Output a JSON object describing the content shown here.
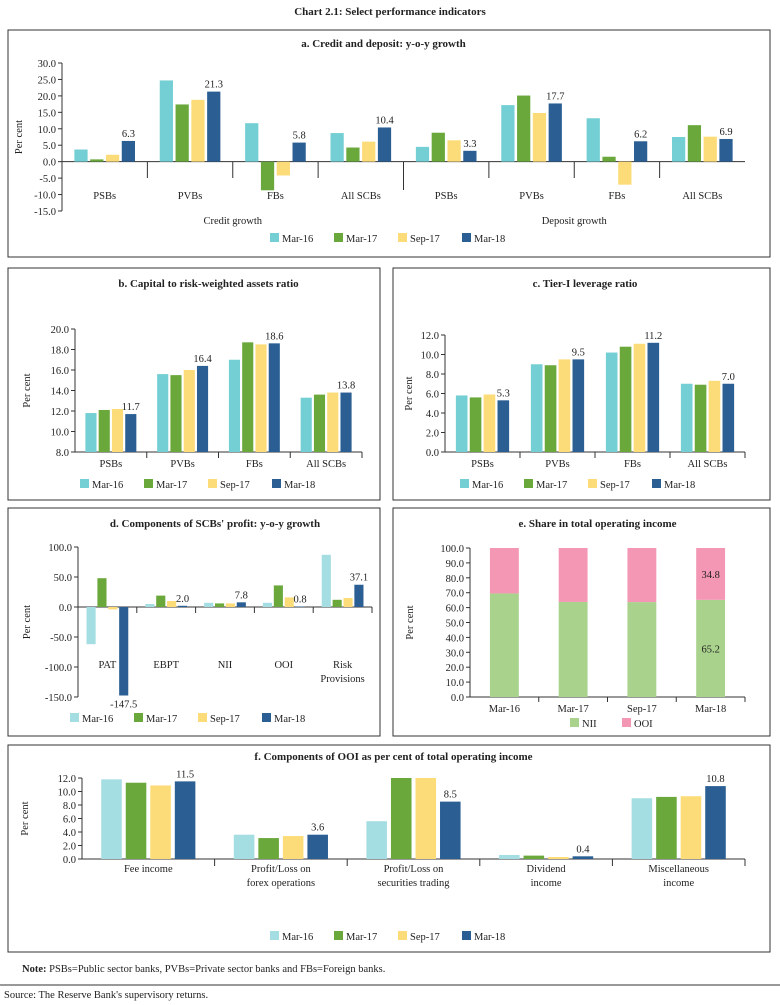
{
  "page_title": "Chart 2.1: Select performance indicators",
  "note_label": "Note:",
  "note_text": " PSBs=Public sector banks, PVBs=Private sector banks and FBs=Foreign banks.",
  "source": "Source: The Reserve Bank's supervisory returns.",
  "chart_data": {
    "a": {
      "type": "bar",
      "title": "a. Credit and deposit: y-o-y growth",
      "ylabel": "Per cent",
      "ylim": [
        -15,
        30
      ],
      "ystep": 5,
      "categories": [
        "PSBs",
        "PVBs",
        "FBs",
        "All SCBs",
        "PSBs",
        "PVBs",
        "FBs",
        "All SCBs"
      ],
      "groups": [
        {
          "label": "Credit growth",
          "span": 4
        },
        {
          "label": "Deposit growth",
          "span": 4
        }
      ],
      "series": [
        {
          "name": "Mar-16",
          "color": "#74cfd4",
          "values": [
            3.7,
            24.7,
            11.7,
            8.7,
            4.5,
            17.2,
            13.2,
            7.5
          ]
        },
        {
          "name": "Mar-17",
          "color": "#6aa83c",
          "values": [
            0.7,
            17.4,
            -8.7,
            4.3,
            8.8,
            20.1,
            1.5,
            11.1
          ]
        },
        {
          "name": "Sep-17",
          "color": "#fcdc78",
          "values": [
            2.1,
            18.8,
            -4.2,
            6.1,
            6.5,
            14.8,
            -7.0,
            7.6
          ]
        },
        {
          "name": "Mar-18",
          "color": "#2b5f93",
          "values": [
            6.3,
            21.3,
            5.8,
            10.4,
            3.3,
            17.7,
            6.2,
            6.9
          ],
          "labels": [
            "6.3",
            "21.3",
            "5.8",
            "10.4",
            "3.3",
            "17.7",
            "6.2",
            "6.9"
          ]
        }
      ]
    },
    "b": {
      "type": "bar",
      "title": "b. Capital to risk-weighted assets ratio",
      "ylabel": "Per cent",
      "ylim": [
        8,
        20
      ],
      "ystep": 2,
      "categories": [
        "PSBs",
        "PVBs",
        "FBs",
        "All SCBs"
      ],
      "series": [
        {
          "name": "Mar-16",
          "color": "#74cfd4",
          "values": [
            11.8,
            15.6,
            17.0,
            13.3
          ]
        },
        {
          "name": "Mar-17",
          "color": "#6aa83c",
          "values": [
            12.1,
            15.5,
            18.7,
            13.6
          ]
        },
        {
          "name": "Sep-17",
          "color": "#fcdc78",
          "values": [
            12.2,
            16.0,
            18.5,
            13.8
          ]
        },
        {
          "name": "Mar-18",
          "color": "#2b5f93",
          "values": [
            11.7,
            16.4,
            18.6,
            13.8
          ],
          "labels": [
            "11.7",
            "16.4",
            "18.6",
            "13.8"
          ]
        }
      ]
    },
    "c": {
      "type": "bar",
      "title": "c. Tier-I leverage ratio",
      "ylabel": "Per cent",
      "ylim": [
        0,
        12
      ],
      "ystep": 2,
      "categories": [
        "PSBs",
        "PVBs",
        "FBs",
        "All SCBs"
      ],
      "series": [
        {
          "name": "Mar-16",
          "color": "#74cfd4",
          "values": [
            5.8,
            9.0,
            10.2,
            7.0
          ]
        },
        {
          "name": "Mar-17",
          "color": "#6aa83c",
          "values": [
            5.6,
            8.9,
            10.8,
            6.9
          ]
        },
        {
          "name": "Sep-17",
          "color": "#fcdc78",
          "values": [
            5.9,
            9.5,
            11.1,
            7.3
          ]
        },
        {
          "name": "Mar-18",
          "color": "#2b5f93",
          "values": [
            5.3,
            9.5,
            11.2,
            7.0
          ],
          "labels": [
            "5.3",
            "9.5",
            "11.2",
            "7.0"
          ]
        }
      ]
    },
    "d": {
      "type": "bar",
      "title": "d. Components of SCBs' profit: y-o-y growth",
      "ylabel": "Per cent",
      "ylim": [
        -150,
        100
      ],
      "ystep": 50,
      "categories": [
        "PAT",
        "EBPT",
        "NII",
        "OOI",
        "Risk\nProvisions"
      ],
      "series": [
        {
          "name": "Mar-16",
          "color": "#a4dde2",
          "values": [
            -62,
            5,
            7,
            7,
            87
          ]
        },
        {
          "name": "Mar-17",
          "color": "#6aa83c",
          "values": [
            48,
            19,
            6,
            36,
            12
          ]
        },
        {
          "name": "Sep-17",
          "color": "#fcdc78",
          "values": [
            -4,
            10,
            6,
            16,
            15
          ]
        },
        {
          "name": "Mar-18",
          "color": "#2b5f93",
          "values": [
            -147.5,
            2.0,
            7.8,
            0.8,
            37.1
          ],
          "labels": [
            "-147.5",
            "2.0",
            "7.8",
            "0.8",
            "37.1"
          ]
        }
      ]
    },
    "e": {
      "type": "stacked-bar",
      "title": "e. Share in total operating income",
      "ylabel": "Per cent",
      "ylim": [
        0,
        100
      ],
      "ystep": 10,
      "categories": [
        "Mar-16",
        "Mar-17",
        "Sep-17",
        "Mar-18"
      ],
      "series": [
        {
          "name": "NII",
          "color": "#a9d28c",
          "values": [
            69.5,
            63.8,
            63.7,
            65.2
          ],
          "labels": [
            null,
            null,
            null,
            "65.2"
          ]
        },
        {
          "name": "OOI",
          "color": "#f497b5",
          "values": [
            30.5,
            36.2,
            36.3,
            34.8
          ],
          "labels": [
            null,
            null,
            null,
            "34.8"
          ]
        }
      ]
    },
    "f": {
      "type": "bar",
      "title": "f. Components of OOI as per cent of total operating income",
      "ylabel": "Per cent",
      "ylim": [
        0,
        12
      ],
      "ystep": 2,
      "categories": [
        "Fee income",
        "Profit/Loss on\nforex operations",
        "Profit/Loss on\nsecurities trading",
        "Dividend\nincome",
        "Miscellaneous\nincome"
      ],
      "series": [
        {
          "name": "Mar-16",
          "color": "#a4dde2",
          "values": [
            11.8,
            3.6,
            5.6,
            0.6,
            9.0
          ]
        },
        {
          "name": "Mar-17",
          "color": "#6aa83c",
          "values": [
            11.3,
            3.1,
            12.0,
            0.5,
            9.2
          ]
        },
        {
          "name": "Sep-17",
          "color": "#fcdc78",
          "values": [
            10.9,
            3.4,
            12.0,
            0.3,
            9.3
          ]
        },
        {
          "name": "Mar-18",
          "color": "#2b5f93",
          "values": [
            11.5,
            3.6,
            8.5,
            0.4,
            10.8
          ],
          "labels": [
            "11.5",
            "3.6",
            "8.5",
            "0.4",
            "10.8"
          ]
        }
      ]
    }
  }
}
